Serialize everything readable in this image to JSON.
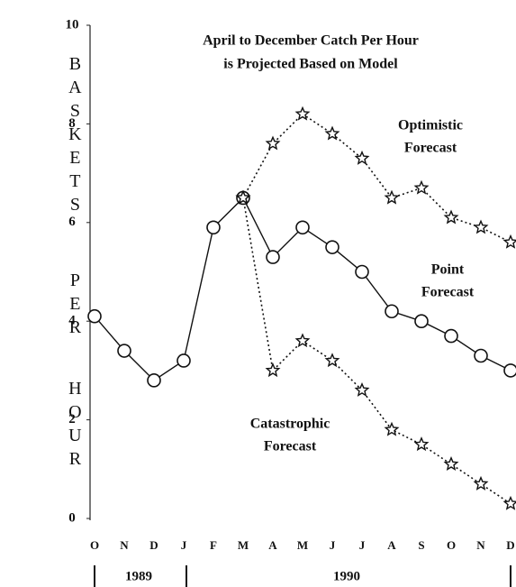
{
  "chart_data": {
    "type": "line",
    "title": [
      "April to December Catch Per Hour",
      "is Projected Based on Model"
    ],
    "y_label": [
      "BASKETS",
      "PER",
      "HOUR"
    ],
    "categories": [
      "O",
      "N",
      "D",
      "J",
      "F",
      "M",
      "A",
      "M",
      "J",
      "J",
      "A",
      "S",
      "O",
      "N",
      "D"
    ],
    "years": [
      "1989",
      "1990"
    ],
    "ylim": [
      0,
      10
    ],
    "yticks": [
      0,
      2,
      4,
      6,
      8,
      10
    ],
    "series": [
      {
        "name": "Point Forecast",
        "color": "#111111",
        "dash": "solid",
        "marker": "circle",
        "values": [
          4.1,
          3.4,
          2.8,
          3.2,
          5.9,
          6.5,
          5.3,
          5.9,
          5.5,
          5.0,
          4.2,
          4.0,
          3.7,
          3.3,
          3.0
        ]
      },
      {
        "name": "Optimistic Forecast",
        "color": "#111111",
        "dash": "dotted",
        "marker": "star",
        "values": [
          null,
          null,
          null,
          null,
          null,
          6.5,
          7.6,
          8.2,
          7.8,
          7.3,
          6.5,
          6.7,
          6.1,
          5.9,
          5.6
        ]
      },
      {
        "name": "Catastrophic Forecast",
        "color": "#111111",
        "dash": "dotted",
        "marker": "star",
        "values": [
          null,
          null,
          null,
          null,
          null,
          6.5,
          3.0,
          3.6,
          3.2,
          2.6,
          1.8,
          1.5,
          1.1,
          0.7,
          0.3
        ]
      }
    ],
    "annotations": [
      [
        "Optimistic",
        "Forecast"
      ],
      [
        "Point",
        "Forecast"
      ],
      [
        "Catastrophic",
        "Forecast"
      ]
    ]
  }
}
